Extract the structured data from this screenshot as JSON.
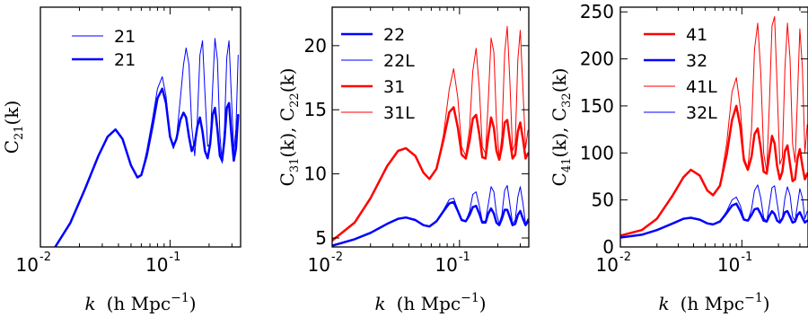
{
  "chart_data": [
    {
      "type": "line",
      "panel": "left",
      "xscale": "log",
      "xlim": [
        0.01,
        0.35
      ],
      "ylim": [
        0.0,
        1.0
      ],
      "yticks": [],
      "xticks": [
        {
          "base": "10",
          "exp": "-2",
          "value": 0.01
        },
        {
          "base": "10",
          "exp": "-1",
          "value": 0.1
        }
      ],
      "xlabel": {
        "var": "k",
        "units": "(h Mpc",
        "exp": "−1",
        "close": ")"
      },
      "ylabel": {
        "base": "C",
        "sub": "21",
        "close": "(k)"
      },
      "legend_position": "upper-left",
      "legend": [
        {
          "label": "21",
          "color": "#0000ff",
          "width": 1
        },
        {
          "label": "21",
          "color": "#0000ff",
          "width": 2.5
        }
      ],
      "series": [
        {
          "name": "21",
          "color": "#0000ff",
          "width": 1,
          "x": [
            0.013,
            0.017,
            0.022,
            0.028,
            0.033,
            0.038,
            0.043,
            0.05,
            0.056,
            0.06,
            0.066,
            0.073,
            0.08,
            0.087,
            0.093,
            0.1,
            0.106,
            0.112,
            0.12,
            0.127,
            0.133,
            0.14,
            0.147,
            0.155,
            0.162,
            0.17,
            0.178,
            0.186,
            0.195,
            0.204,
            0.213,
            0.222,
            0.232,
            0.242,
            0.252,
            0.263,
            0.274,
            0.285,
            0.297,
            0.31,
            0.322,
            0.335
          ],
          "y": [
            0.0,
            0.1,
            0.24,
            0.38,
            0.46,
            0.49,
            0.45,
            0.34,
            0.29,
            0.3,
            0.4,
            0.53,
            0.66,
            0.71,
            0.63,
            0.46,
            0.41,
            0.45,
            0.62,
            0.76,
            0.83,
            0.76,
            0.5,
            0.38,
            0.52,
            0.8,
            0.86,
            0.64,
            0.42,
            0.43,
            0.66,
            0.87,
            0.78,
            0.47,
            0.35,
            0.5,
            0.79,
            0.86,
            0.63,
            0.4,
            0.49,
            0.8
          ]
        },
        {
          "name": "21",
          "color": "#0000ff",
          "width": 2.5,
          "x": [
            0.013,
            0.017,
            0.022,
            0.028,
            0.033,
            0.038,
            0.043,
            0.05,
            0.056,
            0.06,
            0.066,
            0.073,
            0.08,
            0.087,
            0.093,
            0.1,
            0.106,
            0.112,
            0.12,
            0.127,
            0.133,
            0.14,
            0.147,
            0.155,
            0.162,
            0.17,
            0.178,
            0.186,
            0.195,
            0.204,
            0.213,
            0.222,
            0.232,
            0.242,
            0.252,
            0.263,
            0.274,
            0.285,
            0.297,
            0.31,
            0.322,
            0.335
          ],
          "y": [
            0.0,
            0.1,
            0.24,
            0.38,
            0.46,
            0.49,
            0.45,
            0.34,
            0.29,
            0.3,
            0.38,
            0.5,
            0.62,
            0.66,
            0.6,
            0.46,
            0.42,
            0.45,
            0.53,
            0.56,
            0.54,
            0.46,
            0.4,
            0.43,
            0.5,
            0.54,
            0.48,
            0.4,
            0.37,
            0.43,
            0.55,
            0.58,
            0.49,
            0.38,
            0.36,
            0.45,
            0.58,
            0.6,
            0.47,
            0.36,
            0.41,
            0.55
          ]
        }
      ]
    },
    {
      "type": "line",
      "panel": "middle",
      "xscale": "log",
      "xlim": [
        0.01,
        0.35
      ],
      "ylim": [
        4.3,
        23.0
      ],
      "yticks": [
        "5",
        "10",
        "15",
        "20"
      ],
      "xticks": [
        {
          "base": "10",
          "exp": "-2",
          "value": 0.01
        },
        {
          "base": "10",
          "exp": "-1",
          "value": 0.1
        }
      ],
      "xlabel": {
        "var": "k",
        "units": "(h Mpc",
        "exp": "−1",
        "close": ")"
      },
      "ylabel": {
        "part1": "C",
        "sub1": "31",
        "mid": "(k), C",
        "sub2": "22",
        "close": "(k)"
      },
      "legend_position": "upper-left",
      "legend": [
        {
          "label": "22",
          "color": "#0000ff",
          "width": 2.5
        },
        {
          "label": "22L",
          "color": "#0000ff",
          "width": 1
        },
        {
          "label": "31",
          "color": "#ff0000",
          "width": 2.5
        },
        {
          "label": "31L",
          "color": "#ff0000",
          "width": 1
        }
      ],
      "series": [
        {
          "name": "22",
          "color": "#0000ff",
          "width": 2.5,
          "x": [
            0.01,
            0.015,
            0.02,
            0.027,
            0.033,
            0.038,
            0.045,
            0.052,
            0.058,
            0.066,
            0.075,
            0.083,
            0.09,
            0.097,
            0.104,
            0.112,
            0.12,
            0.127,
            0.135,
            0.143,
            0.151,
            0.16,
            0.168,
            0.177,
            0.186,
            0.195,
            0.205,
            0.215,
            0.226,
            0.237,
            0.249,
            0.261,
            0.274,
            0.287,
            0.3,
            0.315,
            0.33,
            0.345
          ],
          "y": [
            4.4,
            4.9,
            5.4,
            6.1,
            6.5,
            6.6,
            6.4,
            6.0,
            5.9,
            6.3,
            7.1,
            7.7,
            7.8,
            7.1,
            6.4,
            6.3,
            6.8,
            7.4,
            7.5,
            6.9,
            6.2,
            6.2,
            6.9,
            7.3,
            6.9,
            6.2,
            6.0,
            6.5,
            7.2,
            7.2,
            6.6,
            6.0,
            6.1,
            6.8,
            7.1,
            6.5,
            6.0,
            6.3
          ]
        },
        {
          "name": "22L",
          "color": "#0000ff",
          "width": 1,
          "x": [
            0.01,
            0.015,
            0.02,
            0.027,
            0.033,
            0.038,
            0.045,
            0.052,
            0.058,
            0.066,
            0.075,
            0.083,
            0.09,
            0.097,
            0.104,
            0.112,
            0.12,
            0.127,
            0.135,
            0.143,
            0.151,
            0.16,
            0.168,
            0.177,
            0.186,
            0.195,
            0.205,
            0.215,
            0.226,
            0.237,
            0.249,
            0.261,
            0.274,
            0.287,
            0.3,
            0.315,
            0.33,
            0.345
          ],
          "y": [
            4.4,
            4.9,
            5.4,
            6.1,
            6.5,
            6.6,
            6.4,
            6.0,
            5.9,
            6.3,
            7.2,
            8.0,
            8.1,
            7.2,
            6.4,
            6.3,
            7.1,
            8.4,
            8.6,
            7.5,
            6.3,
            6.3,
            7.6,
            9.0,
            8.6,
            6.9,
            6.1,
            6.8,
            8.7,
            9.1,
            7.6,
            6.1,
            6.4,
            8.2,
            9.0,
            7.7,
            6.1,
            6.5
          ]
        },
        {
          "name": "31",
          "color": "#ff0000",
          "width": 2.5,
          "x": [
            0.01,
            0.015,
            0.02,
            0.027,
            0.033,
            0.038,
            0.045,
            0.052,
            0.058,
            0.066,
            0.075,
            0.083,
            0.09,
            0.097,
            0.104,
            0.112,
            0.12,
            0.127,
            0.135,
            0.143,
            0.151,
            0.16,
            0.168,
            0.177,
            0.186,
            0.195,
            0.205,
            0.215,
            0.226,
            0.237,
            0.249,
            0.261,
            0.274,
            0.287,
            0.3,
            0.315,
            0.33,
            0.345
          ],
          "y": [
            4.8,
            6.2,
            8.1,
            10.6,
            11.8,
            12.0,
            11.4,
            10.1,
            9.6,
            10.4,
            12.7,
            14.8,
            15.2,
            13.6,
            11.5,
            11.2,
            12.6,
            14.3,
            14.6,
            13.1,
            11.3,
            11.2,
            12.9,
            14.4,
            13.6,
            11.8,
            11.1,
            12.1,
            14.0,
            14.2,
            12.6,
            11.2,
            11.5,
            13.3,
            14.0,
            12.7,
            11.2,
            11.6
          ]
        },
        {
          "name": "31L",
          "color": "#ff0000",
          "width": 1,
          "x": [
            0.01,
            0.015,
            0.02,
            0.027,
            0.033,
            0.038,
            0.045,
            0.052,
            0.058,
            0.066,
            0.075,
            0.083,
            0.09,
            0.097,
            0.104,
            0.112,
            0.12,
            0.127,
            0.135,
            0.143,
            0.151,
            0.16,
            0.168,
            0.177,
            0.186,
            0.195,
            0.205,
            0.215,
            0.226,
            0.237,
            0.249,
            0.261,
            0.274,
            0.287,
            0.3,
            0.315,
            0.33,
            0.345
          ],
          "y": [
            4.8,
            6.2,
            8.1,
            10.6,
            11.8,
            12.0,
            11.4,
            10.1,
            9.6,
            10.4,
            13.1,
            16.6,
            18.2,
            15.9,
            12.1,
            11.4,
            13.6,
            18.0,
            19.8,
            16.7,
            12.1,
            11.6,
            15.6,
            20.6,
            19.5,
            14.1,
            11.2,
            12.9,
            19.4,
            21.5,
            17.1,
            11.8,
            12.4,
            18.9,
            21.2,
            16.6,
            12.0,
            13.4
          ]
        }
      ]
    },
    {
      "type": "line",
      "panel": "right",
      "xscale": "log",
      "xlim": [
        0.01,
        0.35
      ],
      "ylim": [
        0,
        255
      ],
      "yticks": [
        "0",
        "50",
        "100",
        "150",
        "200",
        "250"
      ],
      "xticks": [
        {
          "base": "10",
          "exp": "-2",
          "value": 0.01
        },
        {
          "base": "10",
          "exp": "-1",
          "value": 0.1
        }
      ],
      "xlabel": {
        "var": "k",
        "units": "(h Mpc",
        "exp": "−1",
        "close": ")"
      },
      "ylabel": {
        "part1": "C",
        "sub1": "41",
        "mid": "(k), C",
        "sub2": "32",
        "close": "(k)"
      },
      "legend_position": "upper-left",
      "legend": [
        {
          "label": "41",
          "color": "#ff0000",
          "width": 2.5
        },
        {
          "label": "32",
          "color": "#0000ff",
          "width": 2.5
        },
        {
          "label": "41L",
          "color": "#ff0000",
          "width": 1
        },
        {
          "label": "32L",
          "color": "#0000ff",
          "width": 1
        }
      ],
      "series": [
        {
          "name": "41",
          "color": "#ff0000",
          "width": 2.5,
          "x": [
            0.01,
            0.015,
            0.02,
            0.027,
            0.033,
            0.038,
            0.045,
            0.052,
            0.058,
            0.066,
            0.075,
            0.083,
            0.09,
            0.097,
            0.104,
            0.112,
            0.12,
            0.127,
            0.135,
            0.143,
            0.151,
            0.16,
            0.168,
            0.177,
            0.186,
            0.195,
            0.205,
            0.215,
            0.226,
            0.237,
            0.249,
            0.261,
            0.274,
            0.287,
            0.3,
            0.315,
            0.33,
            0.345
          ],
          "y": [
            12,
            18,
            30,
            55,
            74,
            82,
            76,
            60,
            55,
            65,
            98,
            135,
            150,
            128,
            92,
            82,
            96,
            120,
            126,
            105,
            80,
            78,
            98,
            118,
            110,
            86,
            72,
            80,
            102,
            108,
            88,
            70,
            72,
            94,
            104,
            86,
            72,
            78
          ]
        },
        {
          "name": "32",
          "color": "#0000ff",
          "width": 2.5,
          "x": [
            0.01,
            0.015,
            0.02,
            0.027,
            0.033,
            0.038,
            0.045,
            0.052,
            0.058,
            0.066,
            0.075,
            0.083,
            0.09,
            0.097,
            0.104,
            0.112,
            0.12,
            0.127,
            0.135,
            0.143,
            0.151,
            0.16,
            0.168,
            0.177,
            0.186,
            0.195,
            0.205,
            0.215,
            0.226,
            0.237,
            0.249,
            0.261,
            0.274,
            0.287,
            0.3,
            0.315,
            0.33,
            0.345
          ],
          "y": [
            10,
            13,
            18,
            25,
            30,
            31,
            29,
            25,
            24,
            27,
            36,
            44,
            46,
            38,
            29,
            28,
            34,
            40,
            41,
            35,
            28,
            27,
            33,
            38,
            35,
            28,
            26,
            30,
            37,
            38,
            32,
            26,
            27,
            34,
            37,
            31,
            26,
            28
          ]
        },
        {
          "name": "41L",
          "color": "#ff0000",
          "width": 1,
          "x": [
            0.01,
            0.015,
            0.02,
            0.027,
            0.033,
            0.038,
            0.045,
            0.052,
            0.058,
            0.066,
            0.075,
            0.083,
            0.09,
            0.097,
            0.104,
            0.112,
            0.12,
            0.127,
            0.135,
            0.143,
            0.151,
            0.16,
            0.168,
            0.177,
            0.186,
            0.195,
            0.205,
            0.215,
            0.226,
            0.237,
            0.249,
            0.261,
            0.274,
            0.287,
            0.3,
            0.315,
            0.33,
            0.345
          ],
          "y": [
            12,
            18,
            30,
            55,
            74,
            82,
            76,
            60,
            55,
            65,
            110,
            165,
            180,
            148,
            95,
            84,
            125,
            210,
            238,
            185,
            100,
            80,
            150,
            235,
            245,
            170,
            88,
            95,
            190,
            238,
            200,
            110,
            90,
            160,
            232,
            190,
            100,
            130
          ]
        },
        {
          "name": "32L",
          "color": "#0000ff",
          "width": 1,
          "x": [
            0.01,
            0.015,
            0.02,
            0.027,
            0.033,
            0.038,
            0.045,
            0.052,
            0.058,
            0.066,
            0.075,
            0.083,
            0.09,
            0.097,
            0.104,
            0.112,
            0.12,
            0.127,
            0.135,
            0.143,
            0.151,
            0.16,
            0.168,
            0.177,
            0.186,
            0.195,
            0.205,
            0.215,
            0.226,
            0.237,
            0.249,
            0.261,
            0.274,
            0.287,
            0.3,
            0.315,
            0.33,
            0.345
          ],
          "y": [
            10,
            13,
            18,
            25,
            30,
            31,
            29,
            25,
            24,
            27,
            38,
            50,
            53,
            44,
            30,
            28,
            40,
            60,
            66,
            52,
            31,
            27,
            44,
            63,
            65,
            47,
            28,
            30,
            52,
            64,
            55,
            32,
            28,
            45,
            62,
            52,
            30,
            38
          ]
        }
      ]
    }
  ]
}
